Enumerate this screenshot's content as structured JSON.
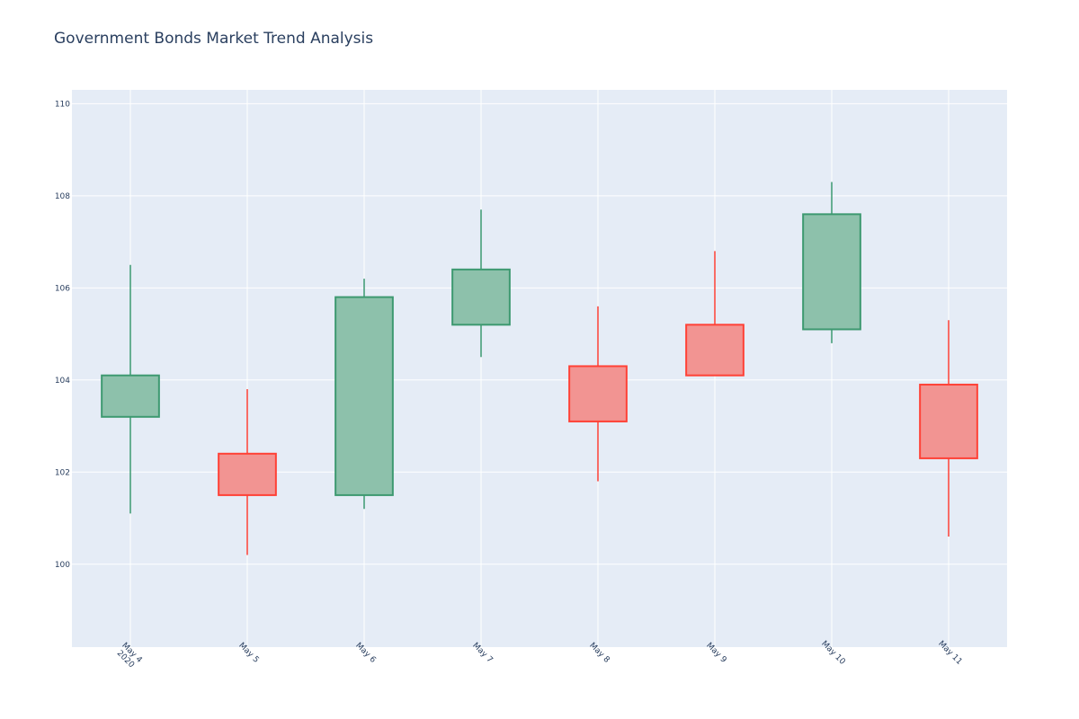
{
  "chart_data": {
    "type": "candlestick",
    "title": "Government Bonds Market Trend Analysis",
    "xlabel": "",
    "ylabel": "",
    "ylim": [
      98.2,
      110.3
    ],
    "y_ticks": [
      100,
      102,
      104,
      106,
      108,
      110
    ],
    "grid": true,
    "legend": "none",
    "colors": {
      "plot_bg": "#e5ecf6",
      "grid": "#ffffff",
      "increasing_line": "#3d9970",
      "increasing_fill": "#8dc1ab",
      "decreasing_line": "#ff4136",
      "decreasing_fill": "#f29492",
      "text": "#2a3f5f"
    },
    "categories": [
      {
        "label": "May 4",
        "sub": "2020"
      },
      {
        "label": "May 5",
        "sub": ""
      },
      {
        "label": "May 6",
        "sub": ""
      },
      {
        "label": "May 7",
        "sub": ""
      },
      {
        "label": "May 8",
        "sub": ""
      },
      {
        "label": "May 9",
        "sub": ""
      },
      {
        "label": "May 10",
        "sub": ""
      },
      {
        "label": "May 11",
        "sub": ""
      }
    ],
    "series": [
      {
        "date": "2020-05-04",
        "open": 103.2,
        "high": 106.5,
        "low": 101.1,
        "close": 104.1
      },
      {
        "date": "2020-05-05",
        "open": 102.4,
        "high": 103.8,
        "low": 100.2,
        "close": 101.5
      },
      {
        "date": "2020-05-06",
        "open": 101.5,
        "high": 106.2,
        "low": 101.2,
        "close": 105.8
      },
      {
        "date": "2020-05-07",
        "open": 105.2,
        "high": 107.7,
        "low": 104.5,
        "close": 106.4
      },
      {
        "date": "2020-05-08",
        "open": 104.3,
        "high": 105.6,
        "low": 101.8,
        "close": 103.1
      },
      {
        "date": "2020-05-09",
        "open": 105.2,
        "high": 106.8,
        "low": 104.1,
        "close": 104.1
      },
      {
        "date": "2020-05-10",
        "open": 105.1,
        "high": 108.3,
        "low": 104.8,
        "close": 107.6
      },
      {
        "date": "2020-05-11",
        "open": 103.9,
        "high": 105.3,
        "low": 100.6,
        "close": 102.3
      }
    ]
  }
}
